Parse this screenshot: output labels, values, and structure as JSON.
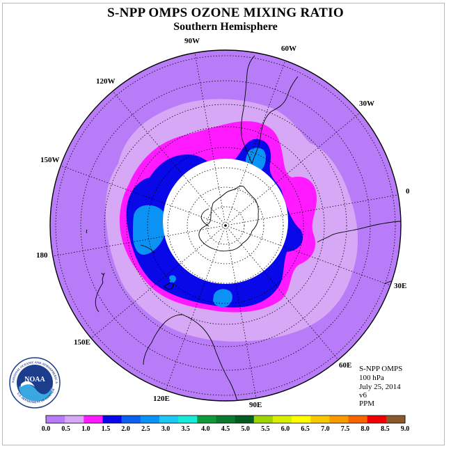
{
  "title": "S-NPP OMPS OZONE MIXING RATIO",
  "subtitle": "Southern Hemisphere",
  "info": {
    "instrument": "S-NPP OMPS",
    "level": "100 hPa",
    "date": "July 25, 2014",
    "version": "v6",
    "units": "PPM"
  },
  "logo_text": "NOAA",
  "logo_ring_text": "NATIONAL OCEANIC AND ATMOSPHERIC ADMINISTRATION",
  "logo_ring_text_bottom": "U.S. DEPARTMENT OF COMMERCE",
  "longitude_labels": [
    "90W",
    "60W",
    "30W",
    "0",
    "30E",
    "60E",
    "90E",
    "120E",
    "150E",
    "180",
    "150W",
    "120W"
  ],
  "colorbar": {
    "colors": [
      "#b87cf8",
      "#d7a8f6",
      "#ff1aff",
      "#0808e8",
      "#0a60f0",
      "#0a92f4",
      "#1ec8f4",
      "#18ecd8",
      "#0f9a3c",
      "#0a7a30",
      "#005c22",
      "#9ed400",
      "#d8f000",
      "#ffff00",
      "#f8c800",
      "#f89a00",
      "#f86400",
      "#f00000",
      "#8b5a2b"
    ],
    "tick_labels": [
      "0.0",
      "0.5",
      "1.0",
      "1.5",
      "2.0",
      "2.5",
      "3.0",
      "3.5",
      "4.0",
      "4.5",
      "5.0",
      "5.5",
      "6.0",
      "6.5",
      "7.0",
      "7.5",
      "8.0",
      "8.5",
      "9.0"
    ]
  },
  "map": {
    "projection": "south polar stereographic",
    "no_data_region": "polar night"
  }
}
